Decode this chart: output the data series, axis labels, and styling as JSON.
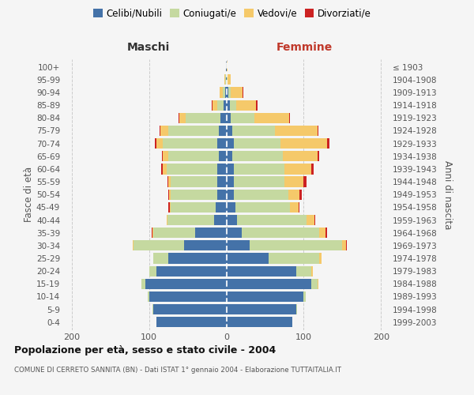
{
  "age_groups": [
    "0-4",
    "5-9",
    "10-14",
    "15-19",
    "20-24",
    "25-29",
    "30-34",
    "35-39",
    "40-44",
    "45-49",
    "50-54",
    "55-59",
    "60-64",
    "65-69",
    "70-74",
    "75-79",
    "80-84",
    "85-89",
    "90-94",
    "95-99",
    "100+"
  ],
  "birth_years": [
    "1999-2003",
    "1994-1998",
    "1989-1993",
    "1984-1988",
    "1979-1983",
    "1974-1978",
    "1969-1973",
    "1964-1968",
    "1959-1963",
    "1954-1958",
    "1949-1953",
    "1944-1948",
    "1939-1943",
    "1934-1938",
    "1929-1933",
    "1924-1928",
    "1919-1923",
    "1914-1918",
    "1909-1913",
    "1904-1908",
    "≤ 1903"
  ],
  "maschi": {
    "celibi": [
      90,
      95,
      100,
      105,
      90,
      75,
      55,
      40,
      16,
      14,
      12,
      12,
      12,
      10,
      12,
      10,
      8,
      4,
      2,
      1,
      1
    ],
    "coniugati": [
      0,
      1,
      2,
      5,
      10,
      20,
      65,
      55,
      60,
      58,
      60,
      60,
      65,
      65,
      70,
      65,
      45,
      8,
      3,
      1,
      0
    ],
    "vedovi": [
      0,
      0,
      0,
      0,
      0,
      0,
      1,
      1,
      1,
      1,
      2,
      3,
      5,
      7,
      8,
      10,
      8,
      6,
      4,
      1,
      0
    ],
    "divorziati": [
      0,
      0,
      0,
      0,
      0,
      0,
      0,
      1,
      0,
      2,
      1,
      1,
      2,
      1,
      2,
      1,
      1,
      1,
      0,
      0,
      0
    ]
  },
  "femmine": {
    "nubili": [
      85,
      90,
      100,
      110,
      90,
      55,
      30,
      20,
      14,
      12,
      10,
      10,
      10,
      8,
      10,
      8,
      6,
      5,
      3,
      1,
      1
    ],
    "coniugate": [
      0,
      1,
      3,
      8,
      20,
      65,
      120,
      100,
      90,
      70,
      70,
      65,
      65,
      65,
      60,
      55,
      30,
      8,
      3,
      1,
      0
    ],
    "vedove": [
      0,
      0,
      0,
      1,
      2,
      3,
      5,
      8,
      10,
      12,
      15,
      25,
      35,
      45,
      60,
      55,
      45,
      25,
      15,
      4,
      1
    ],
    "divorziate": [
      0,
      0,
      0,
      0,
      0,
      0,
      1,
      2,
      1,
      1,
      3,
      4,
      3,
      2,
      3,
      1,
      1,
      2,
      1,
      0,
      0
    ]
  },
  "colors": {
    "celibi": "#4472a8",
    "coniugati": "#c5d9a0",
    "vedovi": "#f5c96a",
    "divorziati": "#cc2222"
  },
  "xlim": 210,
  "title": "Popolazione per età, sesso e stato civile - 2004",
  "subtitle": "COMUNE DI CERRETO SANNITA (BN) - Dati ISTAT 1° gennaio 2004 - Elaborazione TUTTAITALIA.IT",
  "ylabel_left": "Fasce di età",
  "ylabel_right": "Anni di nascita",
  "xlabel_left": "Maschi",
  "xlabel_right": "Femmine",
  "bg_color": "#f5f5f5",
  "bar_height": 0.82,
  "grid_color": "#cccccc"
}
